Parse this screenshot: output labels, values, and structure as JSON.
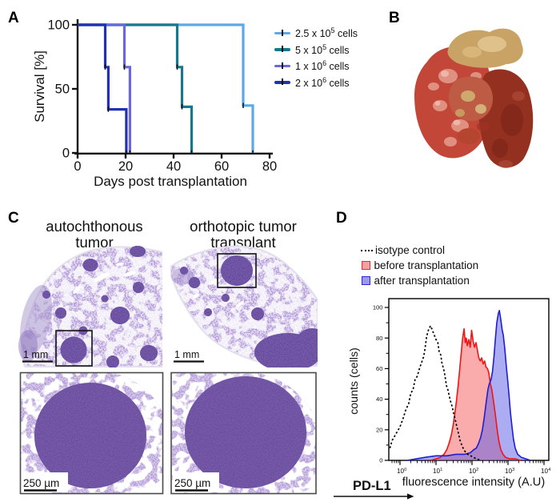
{
  "panels": {
    "a": {
      "label": "A",
      "legend": [
        {
          "pre": "2.5 x 10",
          "exp": "5",
          "post": " cells",
          "color": "#5FA8E6"
        },
        {
          "pre": "5 x 10",
          "exp": "5",
          "post": " cells",
          "color": "#16788A"
        },
        {
          "pre": "1 x 10",
          "exp": "6",
          "post": " cells",
          "color": "#6B66DB"
        },
        {
          "pre": "2 x 10",
          "exp": "6",
          "post": " cells",
          "color": "#2330B2"
        }
      ]
    },
    "b": {
      "label": "B"
    },
    "c": {
      "label": "C",
      "titles": [
        {
          "line1": "autochthonous",
          "line2": "tumor"
        },
        {
          "line1": "orthotopic tumor",
          "line2": "transplant"
        }
      ],
      "scalebars": [
        "1 mm",
        "1 mm",
        "250 µm",
        "250 µm"
      ]
    },
    "d": {
      "label": "D",
      "legend": [
        {
          "label": "isotype control",
          "marker": "dotted",
          "color": "#000000",
          "fill": "none"
        },
        {
          "label": "before transplantation",
          "marker": "square",
          "color": "#E03030",
          "fill": "#F4A0A0"
        },
        {
          "label": "after transplantation",
          "marker": "square",
          "color": "#2A2AD6",
          "fill": "#9A9AEC"
        }
      ],
      "axis_arrow_label": "PD-L1"
    }
  },
  "chart_data": [
    {
      "type": "line",
      "subtype": "kaplan-meier-step",
      "title": "",
      "xlabel": "Days post transplantation",
      "ylabel": "Survival [%]",
      "xticks": [
        0,
        20,
        40,
        60,
        80
      ],
      "yticks": [
        0,
        50,
        100
      ],
      "xlim": [
        0,
        80
      ],
      "ylim": [
        0,
        100
      ],
      "grid": false,
      "legend_position": "right-top",
      "series": [
        {
          "name": "2.5 x 10^5 cells",
          "color": "#5FA8E6",
          "steps": [
            [
              0,
              100
            ],
            [
              69,
              100
            ],
            [
              69,
              37
            ],
            [
              73,
              37
            ],
            [
              73,
              0
            ]
          ]
        },
        {
          "name": "5 x 10^5 cells",
          "color": "#16788A",
          "steps": [
            [
              0,
              100
            ],
            [
              41.5,
              100
            ],
            [
              41.5,
              67
            ],
            [
              43.5,
              67
            ],
            [
              43.5,
              36
            ],
            [
              47.5,
              36
            ],
            [
              47.5,
              0
            ]
          ]
        },
        {
          "name": "1 x 10^6 cells",
          "color": "#6B66DB",
          "steps": [
            [
              0,
              100
            ],
            [
              19.5,
              100
            ],
            [
              19.5,
              67
            ],
            [
              21.8,
              67
            ],
            [
              21.8,
              0
            ]
          ]
        },
        {
          "name": "2 x 10^6 cells",
          "color": "#2330B2",
          "steps": [
            [
              0,
              100
            ],
            [
              11.5,
              100
            ],
            [
              11.5,
              67
            ],
            [
              12.8,
              67
            ],
            [
              12.8,
              34
            ],
            [
              20.3,
              34
            ],
            [
              20.3,
              0
            ]
          ]
        }
      ]
    },
    {
      "type": "area",
      "subtype": "flow-cytometry-histogram",
      "xlabel": "fluorescence intensity (A.U)",
      "ylabel": "counts (cells)",
      "x_scale": "log10",
      "x_decades": [
        0,
        1,
        2,
        3,
        4
      ],
      "yticks": [
        0,
        20,
        40,
        60,
        80,
        100
      ],
      "ylim": [
        0,
        100
      ],
      "marker_label": "PD-L1",
      "series": [
        {
          "name": "isotype control",
          "style": "dotted",
          "color": "#000000",
          "fill": "none",
          "points": [
            [
              -0.28,
              8
            ],
            [
              -0.22,
              13
            ],
            [
              -0.12,
              17
            ],
            [
              0,
              22
            ],
            [
              0.08,
              27
            ],
            [
              0.16,
              33
            ],
            [
              0.24,
              37
            ],
            [
              0.3,
              44
            ],
            [
              0.36,
              46
            ],
            [
              0.42,
              53
            ],
            [
              0.48,
              55
            ],
            [
              0.54,
              60
            ],
            [
              0.6,
              64
            ],
            [
              0.66,
              68
            ],
            [
              0.7,
              74
            ],
            [
              0.74,
              81
            ],
            [
              0.8,
              86
            ],
            [
              0.85,
              88
            ],
            [
              0.9,
              85
            ],
            [
              0.95,
              82
            ],
            [
              1.0,
              79
            ],
            [
              1.05,
              77
            ],
            [
              1.09,
              71
            ],
            [
              1.13,
              69
            ],
            [
              1.17,
              63
            ],
            [
              1.21,
              60
            ],
            [
              1.25,
              55
            ],
            [
              1.29,
              49
            ],
            [
              1.33,
              46
            ],
            [
              1.37,
              42
            ],
            [
              1.41,
              38
            ],
            [
              1.45,
              35
            ],
            [
              1.49,
              31
            ],
            [
              1.53,
              27
            ],
            [
              1.57,
              23
            ],
            [
              1.62,
              18
            ],
            [
              1.67,
              13
            ],
            [
              1.73,
              9
            ],
            [
              1.8,
              6
            ],
            [
              1.88,
              4
            ],
            [
              1.96,
              3
            ],
            [
              2.04,
              2
            ],
            [
              2.12,
              1
            ],
            [
              2.25,
              0
            ]
          ]
        },
        {
          "name": "before transplantation",
          "style": "filled",
          "color": "#F01414",
          "fill": "rgba(244,70,70,0.45)",
          "points": [
            [
              0.85,
              0
            ],
            [
              1.0,
              1
            ],
            [
              1.12,
              2
            ],
            [
              1.22,
              4
            ],
            [
              1.3,
              7
            ],
            [
              1.36,
              11
            ],
            [
              1.42,
              16
            ],
            [
              1.47,
              22
            ],
            [
              1.52,
              30
            ],
            [
              1.57,
              39
            ],
            [
              1.62,
              50
            ],
            [
              1.66,
              60
            ],
            [
              1.7,
              70
            ],
            [
              1.74,
              80
            ],
            [
              1.78,
              86
            ],
            [
              1.81,
              77
            ],
            [
              1.84,
              80
            ],
            [
              1.87,
              75
            ],
            [
              1.91,
              79
            ],
            [
              1.95,
              74
            ],
            [
              1.99,
              85
            ],
            [
              2.03,
              78
            ],
            [
              2.07,
              74
            ],
            [
              2.11,
              77
            ],
            [
              2.15,
              72
            ],
            [
              2.19,
              67
            ],
            [
              2.23,
              65
            ],
            [
              2.27,
              67
            ],
            [
              2.31,
              63
            ],
            [
              2.35,
              65
            ],
            [
              2.39,
              61
            ],
            [
              2.43,
              60
            ],
            [
              2.47,
              57
            ],
            [
              2.51,
              50
            ],
            [
              2.55,
              46
            ],
            [
              2.59,
              40
            ],
            [
              2.63,
              33
            ],
            [
              2.67,
              26
            ],
            [
              2.71,
              18
            ],
            [
              2.75,
              12
            ],
            [
              2.8,
              7
            ],
            [
              2.86,
              4
            ],
            [
              2.93,
              2
            ],
            [
              3.05,
              1
            ],
            [
              3.2,
              1
            ],
            [
              3.35,
              0
            ]
          ]
        },
        {
          "name": "after transplantation",
          "style": "filled",
          "color": "#1E1ED2",
          "fill": "rgba(90,90,230,0.5)",
          "points": [
            [
              0.2,
              0
            ],
            [
              0.45,
              1
            ],
            [
              0.7,
              2
            ],
            [
              1.0,
              3
            ],
            [
              1.3,
              3
            ],
            [
              1.55,
              4
            ],
            [
              1.8,
              4
            ],
            [
              1.95,
              5
            ],
            [
              2.05,
              7
            ],
            [
              2.12,
              8
            ],
            [
              2.18,
              11
            ],
            [
              2.24,
              15
            ],
            [
              2.29,
              20
            ],
            [
              2.34,
              28
            ],
            [
              2.39,
              37
            ],
            [
              2.44,
              46
            ],
            [
              2.48,
              50
            ],
            [
              2.53,
              53
            ],
            [
              2.57,
              58
            ],
            [
              2.61,
              68
            ],
            [
              2.65,
              80
            ],
            [
              2.69,
              90
            ],
            [
              2.73,
              96
            ],
            [
              2.76,
              98
            ],
            [
              2.8,
              92
            ],
            [
              2.84,
              85
            ],
            [
              2.87,
              82
            ],
            [
              2.91,
              73
            ],
            [
              2.95,
              62
            ],
            [
              2.99,
              53
            ],
            [
              3.03,
              42
            ],
            [
              3.07,
              31
            ],
            [
              3.11,
              22
            ],
            [
              3.15,
              14
            ],
            [
              3.2,
              8
            ],
            [
              3.27,
              4
            ],
            [
              3.37,
              2
            ],
            [
              3.5,
              1
            ],
            [
              3.62,
              0
            ]
          ]
        }
      ]
    }
  ]
}
